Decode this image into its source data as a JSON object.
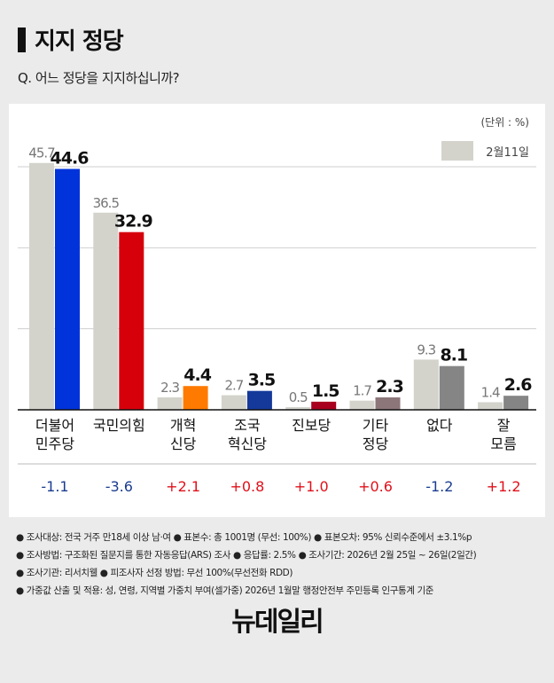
{
  "title": "지지 정당",
  "question": "Q. 어느 정당을 지지하십니까?",
  "chart_data": {
    "type": "bar",
    "unit": "(단위 : %)",
    "categories": [
      [
        "더불어",
        "민주당"
      ],
      [
        "국민의힘"
      ],
      [
        "개혁",
        "신당"
      ],
      [
        "조국",
        "혁신당"
      ],
      [
        "진보당"
      ],
      [
        "기타",
        "정당"
      ],
      [
        "없다"
      ],
      [
        "잘",
        "모름"
      ]
    ],
    "series": [
      {
        "name": "2월11일",
        "values": [
          45.7,
          36.5,
          2.3,
          2.7,
          0.5,
          1.7,
          9.3,
          1.4
        ],
        "color": "#d3d3cc"
      },
      {
        "values": [
          44.6,
          32.9,
          4.4,
          3.5,
          1.5,
          2.3,
          8.1,
          2.6
        ],
        "colors": [
          "#0033d9",
          "#d6000b",
          "#ff7a00",
          "#14399a",
          "#a8001e",
          "#8c767a",
          "#858585",
          "#858585"
        ]
      }
    ],
    "changes": [
      "-1.1",
      "-3.6",
      "+2.1",
      "+0.8",
      "+1.0",
      "+0.6",
      "-1.2",
      "+1.2"
    ],
    "change_colors": {
      "negative": "#1a3c8f",
      "positive": "#e0101a"
    },
    "ylim": [
      0,
      45
    ],
    "gridlines": [
      15,
      30,
      45
    ],
    "legend_position": "top-right"
  },
  "footer": [
    "● 조사대상: 전국 거주 만18세 이상 남·여 ● 표본수: 총 1001명 (무선: 100%) ● 표본오차: 95% 신뢰수준에서 ±3.1%p",
    "● 조사방법: 구조화된 질문지를 통한 자동응답(ARS) 조사 ● 응답률: 2.5% ● 조사기간: 2026년 2월 25일 ~ 26일(2일간)",
    "● 조사기관: 리서치웰 ● 피조사자 선정 방법: 무선 100%(무선전화 RDD)",
    "● 가중값 산출 및 적용: 성, 연령, 지역별 가중치 부여(셀가중) 2026년 1월말 행정안전부 주민등록 인구통계 기준"
  ],
  "logo": "뉴데일리"
}
